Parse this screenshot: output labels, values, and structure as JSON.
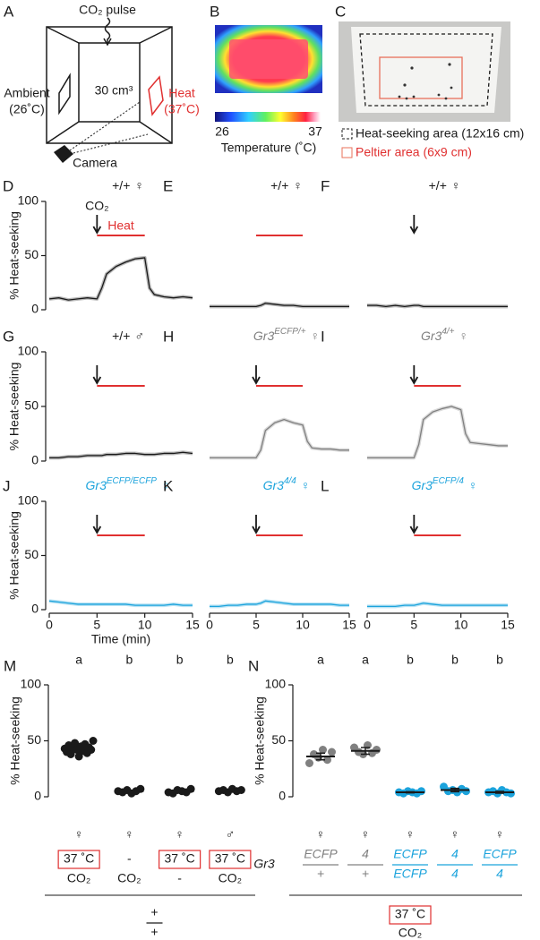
{
  "panel_a": {
    "letter": "A",
    "co2_pulse": "CO₂ pulse",
    "volume": "30 cm³",
    "ambient": "Ambient",
    "ambient_temp": "(26˚C)",
    "heat": "Heat",
    "heat_temp": "(37˚C)",
    "camera": "Camera"
  },
  "panel_b": {
    "letter": "B",
    "colorbar_ticks": [
      26,
      37
    ],
    "colorbar_label": "Temperature (˚C)"
  },
  "panel_c": {
    "letter": "C",
    "legend": [
      "Heat-seeking area (12x16 cm)",
      "Peltier area (6x9 cm)"
    ]
  },
  "chart_data": [
    {
      "type": "line",
      "letter": "D",
      "genotype": "+/+",
      "sex": "♀",
      "co2_label": "CO₂",
      "heat_label": "Heat",
      "co2_time": 5,
      "heat_period": [
        5,
        10
      ],
      "x": [
        0,
        1,
        2,
        3,
        4,
        5,
        5.5,
        6,
        7,
        8,
        9,
        10,
        10.5,
        11,
        12,
        13,
        14,
        15
      ],
      "series": [
        {
          "color": "#1a1a1a",
          "values": [
            10,
            11,
            9,
            10,
            11,
            10,
            20,
            33,
            40,
            44,
            47,
            48,
            20,
            14,
            12,
            11,
            12,
            11
          ]
        }
      ],
      "xlim": [
        0,
        15
      ],
      "ylim": [
        0,
        100
      ],
      "yticks": [
        0,
        50,
        100
      ],
      "ylabel": "% Heat-seeking"
    },
    {
      "type": "line",
      "letter": "E",
      "genotype": "+/+",
      "sex": "♀",
      "heat_period": [
        5,
        10
      ],
      "x": [
        0,
        1,
        2,
        3,
        4,
        5,
        5.5,
        6,
        7,
        8,
        9,
        10,
        10.5,
        11,
        12,
        13,
        14,
        15
      ],
      "series": [
        {
          "color": "#1a1a1a",
          "values": [
            3,
            3,
            3,
            3,
            3,
            3,
            4,
            6,
            5,
            4,
            4,
            3,
            3,
            3,
            3,
            3,
            3,
            3
          ]
        }
      ],
      "xlim": [
        0,
        15
      ],
      "ylim": [
        0,
        100
      ]
    },
    {
      "type": "line",
      "letter": "F",
      "genotype": "+/+",
      "sex": "♀",
      "co2_time": 5,
      "x": [
        0,
        1,
        2,
        3,
        4,
        5,
        5.5,
        6,
        7,
        8,
        9,
        10,
        10.5,
        11,
        12,
        13,
        14,
        15
      ],
      "series": [
        {
          "color": "#1a1a1a",
          "values": [
            4,
            4,
            3,
            4,
            3,
            4,
            4,
            3,
            3,
            3,
            3,
            3,
            3,
            3,
            3,
            3,
            3,
            3
          ]
        }
      ],
      "xlim": [
        0,
        15
      ],
      "ylim": [
        0,
        100
      ]
    },
    {
      "type": "line",
      "letter": "G",
      "genotype": "+/+",
      "sex": "♂",
      "co2_time": 5,
      "heat_period": [
        5,
        10
      ],
      "x": [
        0,
        1,
        2,
        3,
        4,
        5,
        5.5,
        6,
        7,
        8,
        9,
        10,
        10.5,
        11,
        12,
        13,
        14,
        15
      ],
      "series": [
        {
          "color": "#1a1a1a",
          "values": [
            3,
            3,
            4,
            4,
            5,
            5,
            5,
            6,
            6,
            7,
            7,
            6,
            6,
            6,
            7,
            7,
            8,
            7
          ]
        }
      ],
      "xlim": [
        0,
        15
      ],
      "ylim": [
        0,
        100
      ],
      "yticks": [
        0,
        50,
        100
      ],
      "ylabel": "% Heat-seeking"
    },
    {
      "type": "line",
      "letter": "H",
      "genotype": "Gr3",
      "allele": "ECFP/+",
      "sex": "♀",
      "co2_time": 5,
      "heat_period": [
        5,
        10
      ],
      "x": [
        0,
        1,
        2,
        3,
        4,
        5,
        5.5,
        6,
        7,
        8,
        9,
        10,
        10.5,
        11,
        12,
        13,
        14,
        15
      ],
      "series": [
        {
          "color": "#808080",
          "values": [
            3,
            3,
            3,
            3,
            3,
            3,
            10,
            28,
            35,
            38,
            35,
            33,
            18,
            12,
            11,
            11,
            10,
            10
          ]
        }
      ],
      "xlim": [
        0,
        15
      ],
      "ylim": [
        0,
        100
      ]
    },
    {
      "type": "line",
      "letter": "I",
      "genotype": "Gr3",
      "allele": "4/+",
      "sex": "♀",
      "co2_time": 5,
      "heat_period": [
        5,
        10
      ],
      "x": [
        0,
        1,
        2,
        3,
        4,
        5,
        5.5,
        6,
        7,
        8,
        9,
        10,
        10.5,
        11,
        12,
        13,
        14,
        15
      ],
      "series": [
        {
          "color": "#808080",
          "values": [
            3,
            3,
            3,
            3,
            3,
            3,
            15,
            38,
            45,
            48,
            50,
            47,
            25,
            17,
            16,
            15,
            14,
            14
          ]
        }
      ],
      "xlim": [
        0,
        15
      ],
      "ylim": [
        0,
        100
      ]
    },
    {
      "type": "line",
      "letter": "J",
      "genotype": "Gr3",
      "allele": "ECFP/ECFP",
      "sex": "♀",
      "co2_time": 5,
      "heat_period": [
        5,
        10
      ],
      "x": [
        0,
        1,
        2,
        3,
        4,
        5,
        5.5,
        6,
        7,
        8,
        9,
        10,
        10.5,
        11,
        12,
        13,
        14,
        15
      ],
      "series": [
        {
          "color": "#1ba3dc",
          "values": [
            8,
            7,
            6,
            5,
            5,
            5,
            5,
            5,
            5,
            5,
            4,
            4,
            4,
            4,
            4,
            5,
            4,
            4
          ]
        }
      ],
      "xlim": [
        0,
        15
      ],
      "ylim": [
        0,
        100
      ],
      "yticks": [
        0,
        50,
        100
      ],
      "ylabel": "% Heat-seeking",
      "xticks": [
        0,
        5,
        10,
        15
      ],
      "xlabel": "Time (min)"
    },
    {
      "type": "line",
      "letter": "K",
      "genotype": "Gr3",
      "allele": "4/4",
      "sex": "♀",
      "co2_time": 5,
      "heat_period": [
        5,
        10
      ],
      "x": [
        0,
        1,
        2,
        3,
        4,
        5,
        5.5,
        6,
        7,
        8,
        9,
        10,
        10.5,
        11,
        12,
        13,
        14,
        15
      ],
      "series": [
        {
          "color": "#1ba3dc",
          "values": [
            3,
            3,
            4,
            4,
            5,
            5,
            6,
            8,
            7,
            6,
            5,
            5,
            5,
            5,
            5,
            5,
            4,
            4
          ]
        }
      ],
      "xlim": [
        0,
        15
      ],
      "ylim": [
        0,
        100
      ],
      "xticks": [
        0,
        5,
        10,
        15
      ]
    },
    {
      "type": "line",
      "letter": "L",
      "genotype": "Gr3",
      "allele": "ECFP/4",
      "sex": "♀",
      "co2_time": 5,
      "heat_period": [
        5,
        10
      ],
      "x": [
        0,
        1,
        2,
        3,
        4,
        5,
        5.5,
        6,
        7,
        8,
        9,
        10,
        10.5,
        11,
        12,
        13,
        14,
        15
      ],
      "series": [
        {
          "color": "#1ba3dc",
          "values": [
            3,
            3,
            3,
            3,
            4,
            4,
            5,
            6,
            5,
            4,
            4,
            4,
            4,
            4,
            4,
            4,
            4,
            4
          ]
        }
      ],
      "xlim": [
        0,
        15
      ],
      "ylim": [
        0,
        100
      ],
      "xticks": [
        0,
        5,
        10,
        15
      ]
    },
    {
      "type": "dot",
      "letter": "M",
      "ylabel": "% Heat-seeking",
      "ylim": [
        0,
        100
      ],
      "yticks": [
        0,
        50,
        100
      ],
      "color": "#1a1a1a",
      "letters": [
        "a",
        "b",
        "b",
        "b"
      ],
      "means": [
        43,
        5,
        5,
        6
      ],
      "sems": [
        1.2,
        0.6,
        0.6,
        0.6
      ],
      "points": [
        [
          43,
          40,
          46,
          38,
          44,
          48,
          42,
          36,
          45,
          41,
          47,
          39,
          44,
          42,
          50
        ],
        [
          5,
          4,
          6,
          3,
          5,
          7
        ],
        [
          4,
          3,
          6,
          5,
          4,
          7
        ],
        [
          5,
          6,
          4,
          7,
          5,
          6
        ]
      ],
      "sexes": [
        "♀",
        "♀",
        "♀",
        "♂"
      ],
      "heat": [
        "37 ˚C",
        "-",
        "37 ˚C",
        "37 ˚C"
      ],
      "heat_boxed": [
        true,
        false,
        true,
        true
      ],
      "co2": [
        "CO₂",
        "CO₂",
        "-",
        "CO₂"
      ],
      "genotype_num": "+",
      "genotype_den": "+"
    },
    {
      "type": "dot",
      "letter": "N",
      "ylabel": "% Heat-seeking",
      "ylim": [
        0,
        100
      ],
      "yticks": [
        0,
        50,
        100
      ],
      "colors": [
        "#808080",
        "#808080",
        "#1ba3dc",
        "#1ba3dc",
        "#1ba3dc"
      ],
      "letters": [
        "a",
        "a",
        "b",
        "b",
        "b"
      ],
      "means": [
        36,
        41,
        4,
        6,
        4
      ],
      "sems": [
        3,
        3,
        0.5,
        1.5,
        0.8
      ],
      "points": [
        [
          30,
          38,
          35,
          42,
          33,
          40
        ],
        [
          44,
          40,
          38,
          46,
          39,
          42
        ],
        [
          4,
          3,
          5,
          4,
          3,
          5
        ],
        [
          9,
          5,
          6,
          4,
          7,
          5
        ],
        [
          4,
          5,
          3,
          6,
          4,
          3
        ]
      ],
      "sexes": [
        "♀",
        "♀",
        "♀",
        "♀",
        "♀"
      ],
      "gene": "Gr3",
      "numerators": [
        "ECFP",
        "4",
        "ECFP",
        "4",
        "ECFP"
      ],
      "denominators": [
        "+",
        "+",
        "ECFP",
        "4",
        "4"
      ],
      "heat_shared": "37 ˚C",
      "co2_shared": "CO₂"
    }
  ]
}
